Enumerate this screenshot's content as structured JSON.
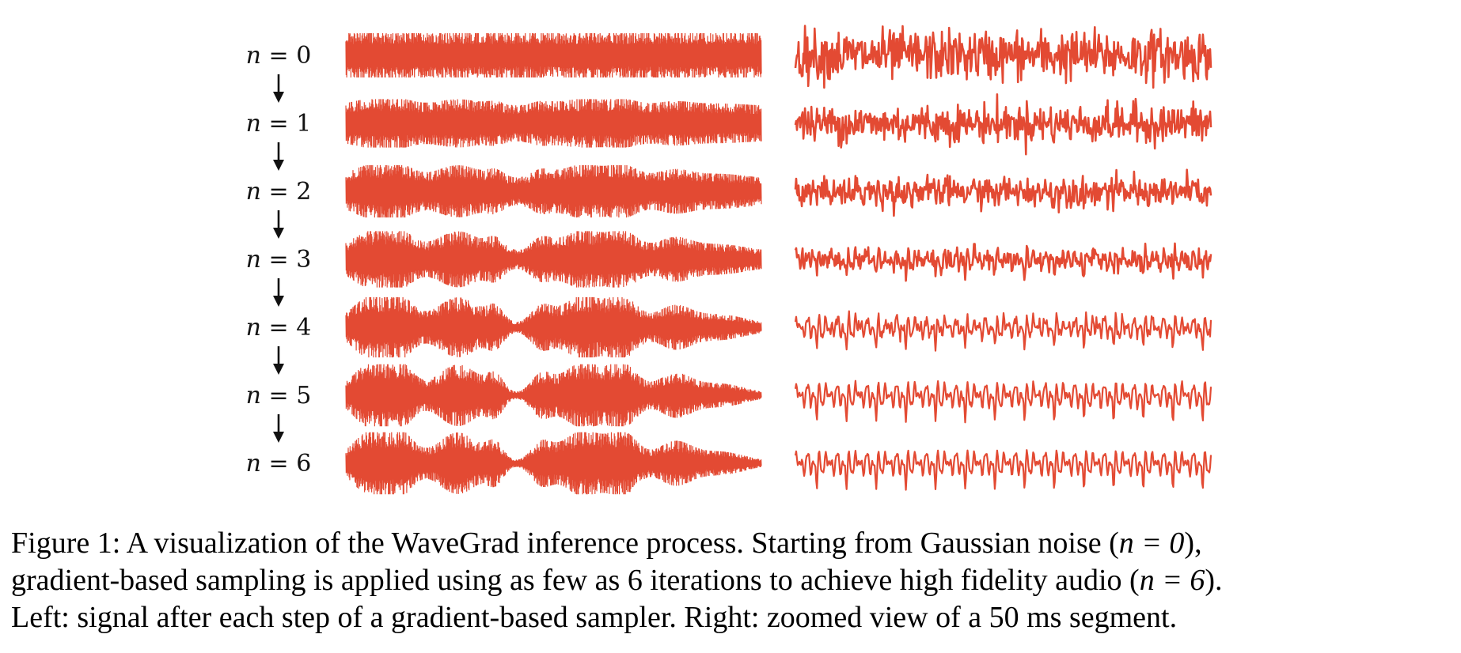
{
  "figure": {
    "wave_color": "#E34A33",
    "label_color": "#111111",
    "steps": [
      {
        "var": "n",
        "op": " = ",
        "value": "0",
        "left_wave": "noise",
        "right_wave": "noise"
      },
      {
        "var": "n",
        "op": " = ",
        "value": "1",
        "left_wave": "noise",
        "right_wave": "noise"
      },
      {
        "var": "n",
        "op": " = ",
        "value": "2",
        "left_wave": "emerging-envelope",
        "right_wave": "noisy-periodic"
      },
      {
        "var": "n",
        "op": " = ",
        "value": "3",
        "left_wave": "speech-envelope",
        "right_wave": "periodic-with-noise"
      },
      {
        "var": "n",
        "op": " = ",
        "value": "4",
        "left_wave": "speech-envelope",
        "right_wave": "clean-periodic"
      },
      {
        "var": "n",
        "op": " = ",
        "value": "5",
        "left_wave": "speech-envelope",
        "right_wave": "clean-periodic"
      },
      {
        "var": "n",
        "op": " = ",
        "value": "6",
        "left_wave": "speech-envelope",
        "right_wave": "clean-periodic"
      }
    ],
    "arrow_icon": "down-arrow-icon"
  },
  "caption": {
    "line1_prefix": "Figure 1: A visualization of the WaveGrad inference process. Starting from Gaussian noise (",
    "line1_math": "n = 0",
    "line1_suffix": "),",
    "line2_prefix": "gradient-based sampling is applied using as few as 6 iterations to achieve high fidelity audio (",
    "line2_math": "n = 6",
    "line2_suffix": ").",
    "line3": "Left: signal after each step of a gradient-based sampler. Right: zoomed view of a 50 ms segment."
  }
}
